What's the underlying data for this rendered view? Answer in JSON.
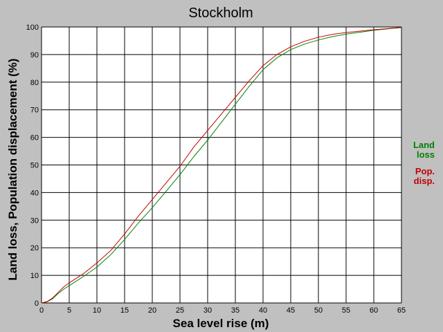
{
  "chart_data": {
    "type": "line",
    "title": "Stockholm",
    "xlabel": "Sea level rise (m)",
    "ylabel": "Land loss, Population displacement (%)",
    "xlim": [
      0,
      65
    ],
    "ylim": [
      0,
      100
    ],
    "grid": true,
    "legend_position": "right",
    "x_ticks": [
      0,
      5,
      10,
      15,
      20,
      25,
      30,
      35,
      40,
      45,
      50,
      55,
      60,
      65
    ],
    "y_ticks": [
      0,
      10,
      20,
      30,
      40,
      50,
      60,
      70,
      80,
      90,
      100
    ],
    "x": [
      0,
      1,
      2,
      3,
      4,
      5,
      7.5,
      10,
      12.5,
      15,
      17.5,
      20,
      22.5,
      25,
      27.5,
      30,
      32.5,
      35,
      37.5,
      40,
      42.5,
      45,
      47.5,
      50,
      52.5,
      55,
      57.5,
      60,
      62.5,
      65
    ],
    "series": [
      {
        "name": [
          "Land",
          "loss"
        ],
        "color": "#008000",
        "values": [
          0,
          0.4,
          1.5,
          3.4,
          5.0,
          6.3,
          9.5,
          13.0,
          17.5,
          23.0,
          29.0,
          34.5,
          40.5,
          46.5,
          53.0,
          59.0,
          65.5,
          72.0,
          78.5,
          84.5,
          88.8,
          91.8,
          93.8,
          95.3,
          96.5,
          97.4,
          98.1,
          98.8,
          99.3,
          99.8
        ]
      },
      {
        "name": [
          "Pop.",
          "disp."
        ],
        "color": "#c00000",
        "values": [
          0,
          0.5,
          1.8,
          3.8,
          5.8,
          7.3,
          10.5,
          14.5,
          19.0,
          25.0,
          31.5,
          37.5,
          43.5,
          49.5,
          56.5,
          62.5,
          68.5,
          74.5,
          80.5,
          86.0,
          90.0,
          92.8,
          94.8,
          96.3,
          97.3,
          98.0,
          98.5,
          99.0,
          99.4,
          99.8
        ]
      }
    ]
  }
}
